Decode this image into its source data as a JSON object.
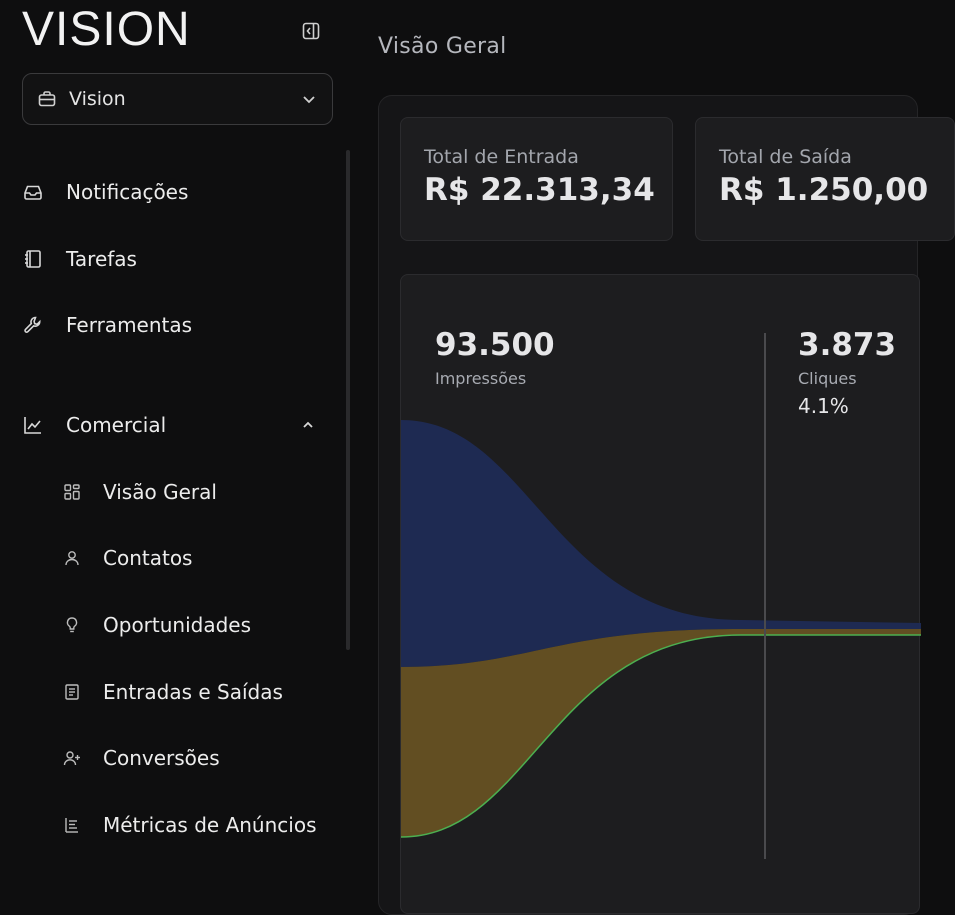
{
  "sidebar": {
    "logo": "VISION",
    "workspace": {
      "label": "Vision"
    },
    "items": [
      {
        "label": "Notificações",
        "icon": "inbox-icon"
      },
      {
        "label": "Tarefas",
        "icon": "notebook-icon"
      },
      {
        "label": "Ferramentas",
        "icon": "wrench-icon"
      }
    ],
    "section": {
      "label": "Comercial",
      "icon": "chart-line-icon",
      "expanded": true
    },
    "sub_items": [
      {
        "label": "Visão Geral",
        "icon": "grid-icon"
      },
      {
        "label": "Contatos",
        "icon": "user-icon"
      },
      {
        "label": "Oportunidades",
        "icon": "lightbulb-icon"
      },
      {
        "label": "Entradas e Saídas",
        "icon": "document-icon"
      },
      {
        "label": "Conversões",
        "icon": "user-plus-icon"
      },
      {
        "label": "Métricas de Anúncios",
        "icon": "list-icon"
      }
    ]
  },
  "main": {
    "page_title": "Visão Geral",
    "stats": [
      {
        "label": "Total de Entrada",
        "value": "R$ 22.313,34"
      },
      {
        "label": "Total de Saída",
        "value": "R$ 1.250,00"
      }
    ],
    "funnel": {
      "stages": [
        {
          "value": "93.500",
          "label": "Impressões",
          "percent": ""
        },
        {
          "value": "3.873",
          "label": "Cliques",
          "percent": "4.1%"
        }
      ],
      "colors": {
        "blue": "#1f2b55",
        "gold": "#6a5422",
        "green": "#4caf50"
      }
    }
  }
}
